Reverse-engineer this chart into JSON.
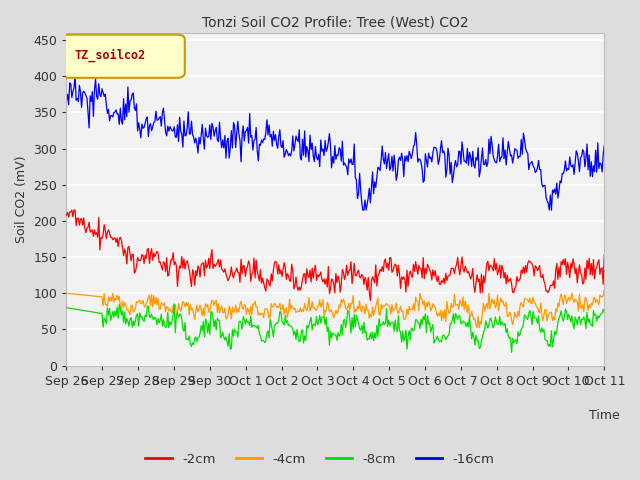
{
  "title": "Tonzi Soil CO2 Profile: Tree (West) CO2",
  "ylabel": "Soil CO2 (mV)",
  "xlabel": "Time",
  "legend_label": "TZ_soilco2",
  "ylim": [
    0,
    460
  ],
  "yticks": [
    0,
    50,
    100,
    150,
    200,
    250,
    300,
    350,
    400,
    450
  ],
  "series_labels": [
    "-2cm",
    "-4cm",
    "-8cm",
    "-16cm"
  ],
  "series_colors": [
    "#ff0000",
    "#ff9900",
    "#00dd00",
    "#0000ff"
  ],
  "figure_bg": "#dddddd",
  "plot_bg": "#f2f2f2",
  "grid_color": "#ffffff",
  "title_color": "#333333",
  "tick_color": "#333333",
  "legend_box_bg": "#ffffcc",
  "legend_box_edge": "#cc9900",
  "legend_text_color": "#aa0000",
  "n_points": 500,
  "xtick_labels": [
    "Sep 26",
    "Sep 27",
    "Sep 28",
    "Sep 29",
    "Sep 30",
    "Oct 1",
    "Oct 2",
    "Oct 3",
    "Oct 4",
    "Oct 5",
    "Oct 6",
    "Oct 7",
    "Oct 8",
    "Oct 9",
    "Oct 10",
    "Oct 11"
  ]
}
